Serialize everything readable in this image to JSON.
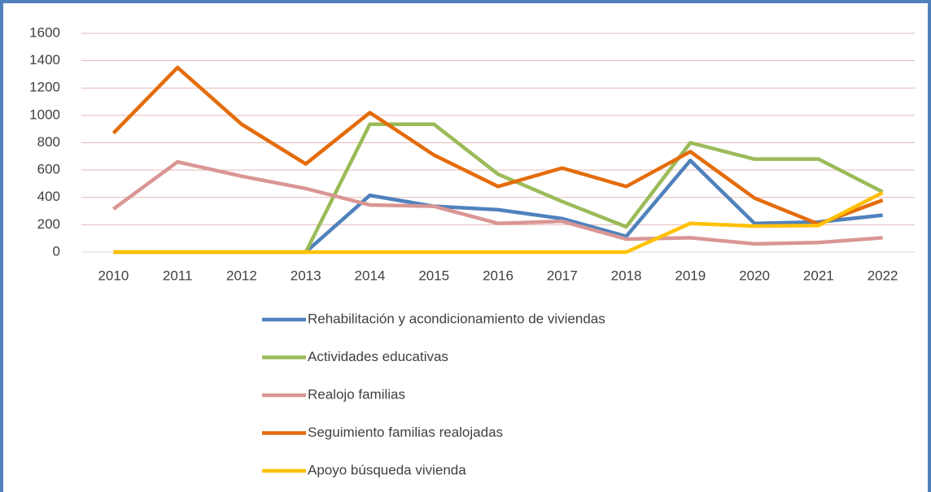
{
  "chart_data": {
    "type": "line",
    "categories": [
      "2010",
      "2011",
      "2012",
      "2013",
      "2014",
      "2015",
      "2016",
      "2017",
      "2018",
      "2019",
      "2020",
      "2021",
      "2022"
    ],
    "series": [
      {
        "name": "Rehabilitación y acondicionamiento de viviendas",
        "color": "#4f81bd",
        "values": [
          0,
          0,
          0,
          0,
          415,
          335,
          310,
          245,
          115,
          670,
          210,
          220,
          270
        ]
      },
      {
        "name": "Actividades educativas",
        "color": "#9bbb59",
        "values": [
          0,
          0,
          0,
          0,
          935,
          935,
          570,
          370,
          185,
          800,
          680,
          680,
          440
        ]
      },
      {
        "name": "Realojo familias",
        "color": "#d99694",
        "values": [
          315,
          660,
          555,
          465,
          345,
          335,
          210,
          225,
          95,
          105,
          60,
          70,
          105
        ]
      },
      {
        "name": "Seguimiento familias realojadas",
        "color": "#e46c0a",
        "values": [
          870,
          1350,
          935,
          645,
          1020,
          710,
          480,
          615,
          480,
          735,
          395,
          205,
          380
        ]
      },
      {
        "name": "Apoyo búsqueda vivienda",
        "color": "#ffc000",
        "values": [
          0,
          0,
          0,
          0,
          0,
          0,
          0,
          0,
          0,
          210,
          190,
          195,
          435
        ]
      }
    ],
    "ylim": [
      0,
      1600
    ],
    "yticks": [
      0,
      200,
      400,
      600,
      800,
      1000,
      1200,
      1400,
      1600
    ],
    "grid": true,
    "legend": "bottom"
  }
}
